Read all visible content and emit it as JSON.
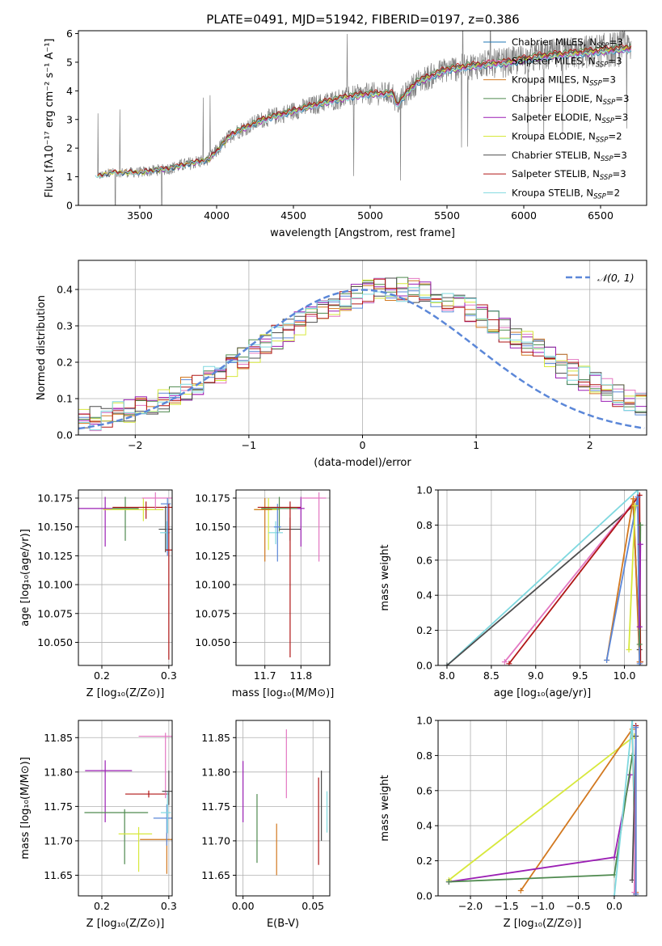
{
  "figure": {
    "title": "PLATE=0491, MJD=51942, FIBERID=0197, z=0.386"
  },
  "chart_data": [
    {
      "id": "spectrum",
      "type": "line",
      "xlabel": "wavelength [Angstrom, rest frame]",
      "ylabel": "Flux [fλ10⁻¹⁷ erg cm⁻² s⁻¹ A⁻¹]",
      "xlim": [
        3100,
        6800
      ],
      "ylim": [
        0,
        6.1
      ],
      "xticks": [
        3500,
        4000,
        4500,
        5000,
        5500,
        6000,
        6500
      ],
      "yticks": [
        0,
        1,
        2,
        3,
        4,
        5,
        6
      ],
      "grid": false,
      "legend_position": "upper-right",
      "observed_color": "#808080",
      "continuum_anchors": {
        "x": [
          3220,
          3300,
          3500,
          3700,
          3850,
          3950,
          4100,
          4300,
          4500,
          4700,
          4860,
          5000,
          5150,
          5170,
          5300,
          5500,
          5700,
          5900,
          6100,
          6300,
          6500,
          6700
        ],
        "y": [
          1.0,
          1.15,
          1.15,
          1.3,
          1.5,
          1.6,
          2.5,
          3.0,
          3.3,
          3.6,
          3.8,
          3.9,
          3.9,
          3.5,
          4.3,
          4.75,
          4.9,
          5.0,
          5.2,
          5.3,
          5.4,
          5.5
        ]
      },
      "series": [
        {
          "name": "Chabrier MILES, N_SSP=3",
          "color": "#1f77b4"
        },
        {
          "name": "Salpeter MILES, N_SSP=3",
          "color": "#e377c2"
        },
        {
          "name": "Kroupa MILES, N_SSP=3",
          "color": "#d2781f"
        },
        {
          "name": "Chabrier ELODIE, N_SSP=3",
          "color": "#4f8a4f"
        },
        {
          "name": "Salpeter ELODIE, N_SSP=3",
          "color": "#9b1fb4"
        },
        {
          "name": "Kroupa ELODIE, N_SSP=2",
          "color": "#d7e83c"
        },
        {
          "name": "Chabrier STELIB, N_SSP=3",
          "color": "#4d4d4d"
        },
        {
          "name": "Salpeter STELIB, N_SSP=3",
          "color": "#b01616"
        },
        {
          "name": "Kroupa STELIB, N_SSP=2",
          "color": "#7fd8df"
        }
      ]
    },
    {
      "id": "residuals",
      "type": "line",
      "xlabel": "(data-model)/error",
      "ylabel": "Normed distribution",
      "xlim": [
        -2.5,
        2.5
      ],
      "ylim": [
        0,
        0.48
      ],
      "xticks": [
        -2,
        -1,
        0,
        1,
        2
      ],
      "yticks": [
        0.0,
        0.1,
        0.2,
        0.3,
        0.4
      ],
      "grid": true,
      "legend_position": "upper-right",
      "gaussian": {
        "label": "𝒩(0, 1)",
        "mean": 0,
        "sigma": 1,
        "color": "#5b87d8"
      },
      "histogram_colors": [
        "#5b87d8",
        "#e377c2",
        "#d2781f",
        "#4f8a4f",
        "#9b1fb4",
        "#d7e83c",
        "#4d4d4d",
        "#b01616",
        "#7fd8df"
      ]
    },
    {
      "id": "age-vs-Z",
      "type": "scatter",
      "xlabel": "Z [log₁₀(Z/Z⊙)]",
      "ylabel": "age  [log₁₀(age/yr)]",
      "xlim": [
        0.165,
        0.305
      ],
      "ylim": [
        10.03,
        10.182
      ],
      "xticks": [
        0.2,
        0.3
      ],
      "yticks": [
        10.05,
        10.075,
        10.1,
        10.125,
        10.15,
        10.175
      ],
      "grid": true,
      "points": [
        {
          "color": "#9b1fb4",
          "x": 0.205,
          "y": 10.166,
          "xerr": [
            0.045,
            0.05
          ],
          "yerr": [
            0.033,
            0.01
          ]
        },
        {
          "color": "#4f8a4f",
          "x": 0.235,
          "y": 10.166,
          "xerr": [
            0.02,
            0.02
          ],
          "yerr": [
            0.028,
            0.01
          ]
        },
        {
          "color": "#d7e83c",
          "x": 0.262,
          "y": 10.165,
          "xerr": [
            0.06,
            0.03
          ],
          "yerr": [
            0.01,
            0.01
          ]
        },
        {
          "color": "#b01616",
          "x": 0.266,
          "y": 10.167,
          "xerr": [
            0.05,
            0.04
          ],
          "yerr": [
            0.01,
            0.005
          ]
        },
        {
          "color": "#e377c2",
          "x": 0.28,
          "y": 10.175,
          "xerr": [
            0.02,
            0.03
          ],
          "yerr": [
            0.01,
            0.005
          ]
        },
        {
          "color": "#4d4d4d",
          "x": 0.295,
          "y": 10.148,
          "xerr": [
            0.01,
            0.01
          ],
          "yerr": [
            0.02,
            0.02
          ]
        },
        {
          "color": "#7fd8df",
          "x": 0.297,
          "y": 10.145,
          "xerr": [
            0.01,
            0.005
          ],
          "yerr": [
            0.015,
            0.01
          ]
        },
        {
          "color": "#5b87d8",
          "x": 0.298,
          "y": 10.17,
          "xerr": [
            0.01,
            0.005
          ],
          "yerr": [
            0.045,
            0.005
          ]
        },
        {
          "color": "#b01616",
          "x": 0.3,
          "y": 10.13,
          "xerr": [
            0.005,
            0.005
          ],
          "yerr": [
            0.095,
            0.04
          ]
        }
      ]
    },
    {
      "id": "age-vs-mass",
      "type": "scatter",
      "xlabel": "mass [log₁₀(M/M⊙)]",
      "ylabel": "",
      "xlim": [
        11.62,
        11.88
      ],
      "ylim": [
        10.03,
        10.182
      ],
      "xticks": [
        11.7,
        11.8
      ],
      "yticks": [
        10.05,
        10.075,
        10.1,
        10.125,
        10.15,
        10.175
      ],
      "grid": true,
      "points": [
        {
          "color": "#d7e83c",
          "x": 11.71,
          "y": 10.165,
          "xerr": [
            0.04,
            0.03
          ],
          "yerr": [
            0.035,
            0.01
          ]
        },
        {
          "color": "#d2781f",
          "x": 11.7,
          "y": 10.165,
          "xerr": [
            0.03,
            0.02
          ],
          "yerr": [
            0.045,
            0.01
          ]
        },
        {
          "color": "#4f8a4f",
          "x": 11.74,
          "y": 10.166,
          "xerr": [
            0.05,
            0.06
          ],
          "yerr": [
            0.02,
            0.01
          ]
        },
        {
          "color": "#7fd8df",
          "x": 11.73,
          "y": 10.145,
          "xerr": [
            0.02,
            0.02
          ],
          "yerr": [
            0.01,
            0.01
          ]
        },
        {
          "color": "#5b87d8",
          "x": 11.735,
          "y": 10.15,
          "xerr": [
            0.01,
            0.01
          ],
          "yerr": [
            0.03,
            0.02
          ]
        },
        {
          "color": "#4d4d4d",
          "x": 11.77,
          "y": 10.148,
          "xerr": [
            0.03,
            0.03
          ],
          "yerr": [
            0.01,
            0.01
          ]
        },
        {
          "color": "#b01616",
          "x": 11.77,
          "y": 10.167,
          "xerr": [
            0.09,
            0.03
          ],
          "yerr": [
            0.13,
            0.005
          ]
        },
        {
          "color": "#9b1fb4",
          "x": 11.8,
          "y": 10.166,
          "xerr": [
            0.01,
            0.01
          ],
          "yerr": [
            0.033,
            0.01
          ]
        },
        {
          "color": "#e377c2",
          "x": 11.85,
          "y": 10.175,
          "xerr": [
            0.05,
            0.02
          ],
          "yerr": [
            0.055,
            0.005
          ]
        }
      ]
    },
    {
      "id": "weight-vs-age",
      "type": "line",
      "xlabel": "age  [log₁₀(age/yr)]",
      "ylabel": "mass weight",
      "xlim": [
        7.9,
        10.25
      ],
      "ylim": [
        0,
        1.0
      ],
      "xticks": [
        8.0,
        8.5,
        9.0,
        9.5,
        10.0
      ],
      "yticks": [
        0.0,
        0.2,
        0.4,
        0.6,
        0.8,
        1.0
      ],
      "grid": true,
      "series": [
        {
          "color": "#7fd8df",
          "x": [
            8.0,
            10.15,
            10.17
          ],
          "y": [
            0.0,
            1.0,
            0.0
          ]
        },
        {
          "color": "#4d4d4d",
          "x": [
            8.0,
            10.1,
            10.17
          ],
          "y": [
            0.0,
            0.91,
            0.09
          ]
        },
        {
          "color": "#e377c2",
          "x": [
            8.65,
            10.15,
            10.17
          ],
          "y": [
            0.02,
            0.96,
            0.02
          ]
        },
        {
          "color": "#b01616",
          "x": [
            8.7,
            10.17,
            10.18
          ],
          "y": [
            0.01,
            0.97,
            0.02
          ]
        },
        {
          "color": "#d2781f",
          "x": [
            9.8,
            10.1,
            10.17
          ],
          "y": [
            0.03,
            0.95,
            0.02
          ]
        },
        {
          "color": "#5b87d8",
          "x": [
            9.8,
            10.15,
            10.17
          ],
          "y": [
            0.03,
            0.96,
            0.01
          ]
        },
        {
          "color": "#d7e83c",
          "x": [
            10.05,
            10.12
          ],
          "y": [
            0.09,
            0.91
          ]
        },
        {
          "color": "#4f8a4f",
          "x": [
            10.17,
            10.18
          ],
          "y": [
            0.12,
            0.8
          ]
        },
        {
          "color": "#9b1fb4",
          "x": [
            10.17,
            10.18
          ],
          "y": [
            0.22,
            0.69
          ]
        }
      ]
    },
    {
      "id": "mass-vs-Z",
      "type": "scatter",
      "xlabel": "Z [log₁₀(Z/Z⊙)]",
      "ylabel": "mass [log₁₀(M/M⊙)]",
      "xlim": [
        0.165,
        0.305
      ],
      "ylim": [
        11.62,
        11.875
      ],
      "xticks": [
        0.2,
        0.3
      ],
      "yticks": [
        11.65,
        11.7,
        11.75,
        11.8,
        11.85
      ],
      "grid": true,
      "points": [
        {
          "color": "#9b1fb4",
          "x": 0.205,
          "y": 11.802,
          "xerr": [
            0.03,
            0.04
          ],
          "yerr": [
            0.075,
            0.015
          ]
        },
        {
          "color": "#4f8a4f",
          "x": 0.234,
          "y": 11.741,
          "xerr": [
            0.06,
            0.035
          ],
          "yerr": [
            0.075,
            0.005
          ]
        },
        {
          "color": "#d7e83c",
          "x": 0.255,
          "y": 11.71,
          "xerr": [
            0.03,
            0.02
          ],
          "yerr": [
            0.055,
            0.01
          ]
        },
        {
          "color": "#b01616",
          "x": 0.27,
          "y": 11.768,
          "xerr": [
            0.035,
            0.03
          ],
          "yerr": [
            0.005,
            0.005
          ]
        },
        {
          "color": "#e377c2",
          "x": 0.295,
          "y": 11.852,
          "xerr": [
            0.04,
            0.01
          ],
          "yerr": [
            0.09,
            0.005
          ]
        },
        {
          "color": "#d2781f",
          "x": 0.297,
          "y": 11.702,
          "xerr": [
            0.04,
            0.008
          ],
          "yerr": [
            0.05,
            0.01
          ]
        },
        {
          "color": "#5b87d8",
          "x": 0.297,
          "y": 11.733,
          "xerr": [
            0.02,
            0.008
          ],
          "yerr": [
            0.04,
            0.02
          ]
        },
        {
          "color": "#7fd8df",
          "x": 0.298,
          "y": 11.741,
          "xerr": [
            0.01,
            0.005
          ],
          "yerr": [
            0.03,
            0.03
          ]
        },
        {
          "color": "#4d4d4d",
          "x": 0.3,
          "y": 11.772,
          "xerr": [
            0.01,
            0.005
          ],
          "yerr": [
            0.02,
            0.03
          ]
        }
      ]
    },
    {
      "id": "mass-vs-EBV",
      "type": "scatter",
      "xlabel": "E(B-V)",
      "ylabel": "",
      "xlim": [
        -0.005,
        0.062
      ],
      "ylim": [
        11.62,
        11.875
      ],
      "xticks": [
        0.0,
        0.05
      ],
      "yticks": [
        11.65,
        11.7,
        11.75,
        11.8,
        11.85
      ],
      "grid": true,
      "points": [
        {
          "color": "#9b1fb4",
          "x": 0.0,
          "yrange": [
            11.727,
            11.816
          ]
        },
        {
          "color": "#4f8a4f",
          "x": 0.01,
          "yrange": [
            11.668,
            11.768
          ]
        },
        {
          "color": "#d2781f",
          "x": 0.024,
          "yrange": [
            11.65,
            11.725
          ]
        },
        {
          "color": "#e377c2",
          "x": 0.031,
          "yrange": [
            11.762,
            11.862
          ]
        },
        {
          "color": "#b01616",
          "x": 0.054,
          "yrange": [
            11.665,
            11.792
          ]
        },
        {
          "color": "#4d4d4d",
          "x": 0.056,
          "yrange": [
            11.7,
            11.802
          ]
        },
        {
          "color": "#7fd8df",
          "x": 0.06,
          "yrange": [
            11.712,
            11.772
          ]
        }
      ]
    },
    {
      "id": "weight-vs-Z",
      "type": "line",
      "xlabel": "Z [log₁₀(Z/Z⊙)]",
      "ylabel": "mass weight",
      "xlim": [
        -2.45,
        0.45
      ],
      "ylim": [
        0,
        1.0
      ],
      "xticks": [
        -2.0,
        -1.5,
        -1.0,
        -0.5,
        0.0
      ],
      "yticks": [
        0.0,
        0.2,
        0.4,
        0.6,
        0.8,
        1.0
      ],
      "grid": true,
      "series": [
        {
          "color": "#d7e83c",
          "x": [
            -2.3,
            0.28
          ],
          "y": [
            0.09,
            0.91
          ]
        },
        {
          "color": "#d2781f",
          "x": [
            -1.3,
            0.25,
            0.3
          ],
          "y": [
            0.03,
            0.95,
            0.02
          ]
        },
        {
          "color": "#9b1fb4",
          "x": [
            -2.3,
            0.0,
            0.22
          ],
          "y": [
            0.08,
            0.22,
            0.69
          ]
        },
        {
          "color": "#4f8a4f",
          "x": [
            -2.3,
            0.0,
            0.25
          ],
          "y": [
            0.08,
            0.12,
            0.8
          ]
        },
        {
          "color": "#7fd8df",
          "x": [
            0.0,
            0.25,
            0.3
          ],
          "y": [
            0.0,
            1.0,
            0.0
          ]
        },
        {
          "color": "#4d4d4d",
          "x": [
            0.25,
            0.3
          ],
          "y": [
            0.09,
            0.91
          ]
        },
        {
          "color": "#e377c2",
          "x": [
            0.28,
            0.3
          ],
          "y": [
            0.02,
            0.96
          ]
        },
        {
          "color": "#b01616",
          "x": [
            0.3,
            0.3
          ],
          "y": [
            0.01,
            0.97
          ]
        },
        {
          "color": "#5b87d8",
          "x": [
            0.3,
            0.3
          ],
          "y": [
            0.01,
            0.96
          ]
        }
      ]
    }
  ]
}
